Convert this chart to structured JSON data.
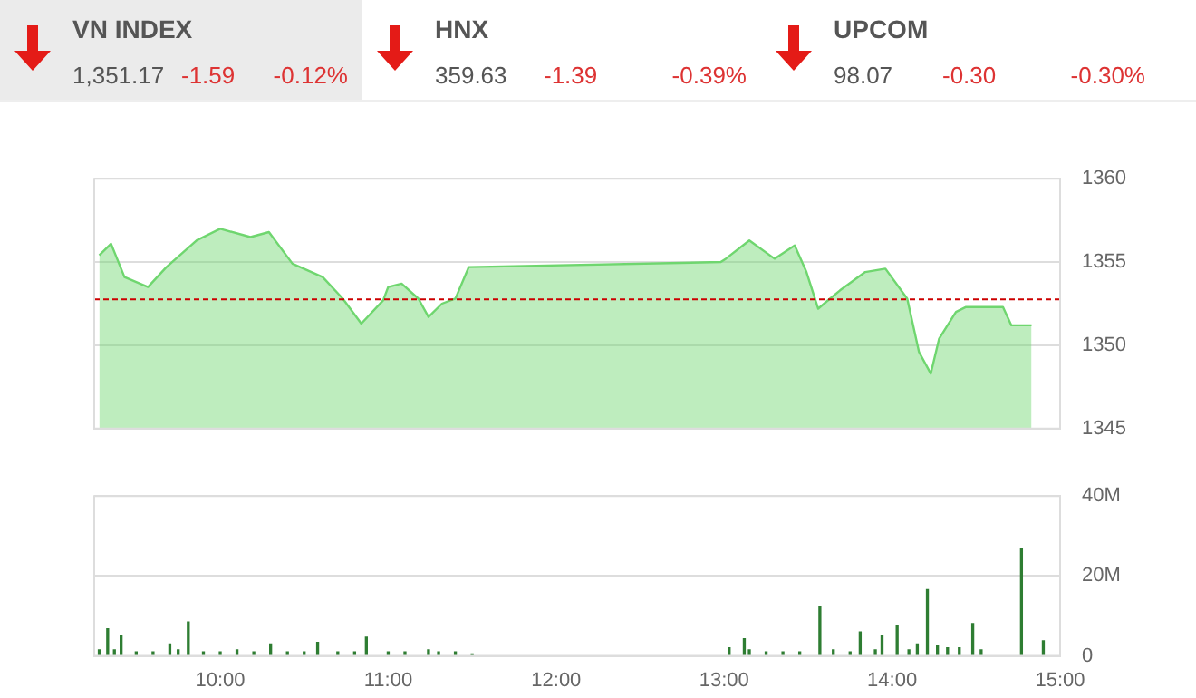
{
  "chart_data": [
    {
      "type": "other",
      "title": "VN INDEX",
      "annotations": [
        "1,351.17",
        "-1.59",
        "-0.12%"
      ]
    },
    {
      "type": "other",
      "title": "HNX",
      "annotations": [
        "359.63",
        "-1.39",
        "-0.39%"
      ]
    },
    {
      "type": "other",
      "title": "UPCOM",
      "annotations": [
        "98.07",
        "-0.30",
        "-0.30%"
      ]
    },
    {
      "type": "area",
      "x": [
        9.28,
        9.35,
        9.43,
        9.57,
        9.68,
        9.86,
        10.0,
        10.18,
        10.29,
        10.43,
        10.61,
        10.73,
        10.84,
        10.97,
        11.0,
        11.08,
        11.18,
        11.24,
        11.32,
        11.4,
        11.48,
        12.98,
        13.01,
        13.15,
        13.3,
        13.42,
        13.49,
        13.56,
        13.63,
        13.69,
        13.84,
        13.96,
        14.09,
        14.16,
        14.23,
        14.28,
        14.38,
        14.44,
        14.66,
        14.71,
        14.83
      ],
      "series": [
        {
          "color": "#6fd66f",
          "values": [
            1355.4,
            1356.1,
            1354.1,
            1353.5,
            1354.7,
            1356.3,
            1357.0,
            1356.5,
            1356.8,
            1354.9,
            1354.1,
            1352.8,
            1351.3,
            1352.7,
            1353.5,
            1353.7,
            1352.8,
            1351.7,
            1352.5,
            1352.8,
            1354.7,
            1355.0,
            1355.2,
            1356.3,
            1355.2,
            1356.0,
            1354.4,
            1352.2,
            1352.8,
            1353.3,
            1354.4,
            1354.6,
            1352.8,
            1349.6,
            1348.3,
            1350.4,
            1352.0,
            1352.3,
            1352.3,
            1351.2,
            1351.2
          ]
        }
      ],
      "xlim": [
        9.25,
        15
      ],
      "ylim": [
        1345,
        1360
      ],
      "yticks": [
        1345,
        1350,
        1355,
        1360
      ],
      "grid": "y",
      "tick_labels": "y",
      "ref_lines": [
        {
          "axis": "y",
          "value": 1352.76,
          "color": "#cc0000",
          "line_style": "dashed"
        }
      ]
    },
    {
      "type": "bar",
      "x": [
        9.28,
        9.33,
        9.37,
        9.41,
        9.5,
        9.6,
        9.7,
        9.75,
        9.81,
        9.9,
        10.0,
        10.1,
        10.2,
        10.3,
        10.4,
        10.5,
        10.58,
        10.7,
        10.8,
        10.87,
        11.0,
        11.1,
        11.24,
        11.3,
        11.4,
        11.5,
        13.03,
        13.12,
        13.15,
        13.25,
        13.35,
        13.45,
        13.57,
        13.65,
        13.75,
        13.81,
        13.9,
        13.94,
        14.03,
        14.1,
        14.15,
        14.21,
        14.27,
        14.33,
        14.4,
        14.48,
        14.53,
        14.77,
        14.9
      ],
      "values": [
        1.5,
        6.8,
        1.5,
        5.1,
        1,
        1,
        3,
        1.5,
        8.5,
        1,
        1,
        1.5,
        1,
        3,
        1,
        1,
        3.4,
        1,
        1,
        4.7,
        1,
        1,
        1.5,
        1,
        1,
        0.5,
        2,
        4.3,
        1.5,
        1,
        1,
        1,
        12.3,
        1.5,
        1,
        6,
        1.5,
        5.1,
        7.7,
        1.5,
        3,
        16.6,
        2.5,
        2,
        2,
        8.1,
        1.5,
        26.8,
        3.8
      ],
      "color": "#2e7d32",
      "xlim": [
        9.25,
        15
      ],
      "xticks": [
        {
          "value": 10,
          "label": "10:00"
        },
        {
          "value": 11,
          "label": "11:00"
        },
        {
          "value": 12,
          "label": "12:00"
        },
        {
          "value": 13,
          "label": "13:00"
        },
        {
          "value": 14,
          "label": "14:00"
        },
        {
          "value": 15,
          "label": "15:00"
        }
      ],
      "ylim": [
        0,
        40
      ],
      "yticks": [
        {
          "value": 0,
          "label": "0"
        },
        {
          "value": 20,
          "label": "20M"
        },
        {
          "value": 40,
          "label": "40M"
        }
      ],
      "grid": "y"
    }
  ]
}
